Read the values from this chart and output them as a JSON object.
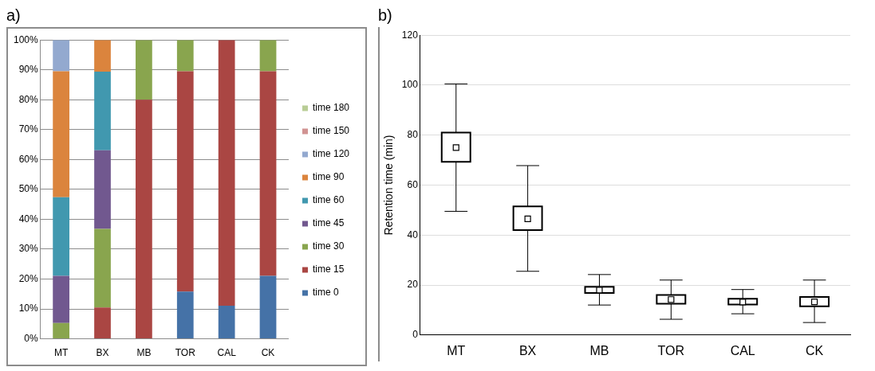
{
  "chart_data": [
    {
      "type": "bar",
      "title": "a)",
      "stacked": true,
      "categories": [
        "MT",
        "BX",
        "MB",
        "TOR",
        "CAL",
        "CK"
      ],
      "ylim": [
        0,
        100
      ],
      "yticks": [
        {
          "value": 0,
          "label": "0%"
        },
        {
          "value": 10,
          "label": "10%"
        },
        {
          "value": 20,
          "label": "20%"
        },
        {
          "value": 30,
          "label": "30%"
        },
        {
          "value": 40,
          "label": "40%"
        },
        {
          "value": 50,
          "label": "50%"
        },
        {
          "value": 60,
          "label": "60%"
        },
        {
          "value": 70,
          "label": "70%"
        },
        {
          "value": 80,
          "label": "80%"
        },
        {
          "value": 90,
          "label": "90%"
        },
        {
          "value": 100,
          "label": "100%"
        }
      ],
      "grid": "y",
      "legend": "right",
      "series": [
        {
          "name": "time 0",
          "color": "#4572a7",
          "values": [
            0,
            0,
            0,
            15.8,
            11.1,
            21.1
          ]
        },
        {
          "name": "time 15",
          "color": "#aa4643",
          "values": [
            0,
            10.5,
            80,
            73.7,
            88.9,
            68.4
          ]
        },
        {
          "name": "time 30",
          "color": "#89a54e",
          "values": [
            5.3,
            26.3,
            20,
            10.5,
            0,
            10.5
          ]
        },
        {
          "name": "time 45",
          "color": "#71588f",
          "values": [
            15.8,
            26.3,
            0,
            0,
            0,
            0
          ]
        },
        {
          "name": "time 60",
          "color": "#4198af",
          "values": [
            26.3,
            26.3,
            0,
            0,
            0,
            0
          ]
        },
        {
          "name": "time 90",
          "color": "#db843d",
          "values": [
            42.1,
            10.6,
            0,
            0,
            0,
            0
          ]
        },
        {
          "name": "time 120",
          "color": "#93a9cf",
          "values": [
            10.5,
            0,
            0,
            0,
            0,
            0
          ]
        },
        {
          "name": "time 150",
          "color": "#d19392",
          "values": [
            0,
            0,
            0,
            0,
            0,
            0
          ]
        },
        {
          "name": "time 180",
          "color": "#b9cd96",
          "values": [
            0,
            0,
            0,
            0,
            0,
            0
          ]
        }
      ]
    },
    {
      "type": "box",
      "title": "b)",
      "ylabel": "Retention time (min)",
      "categories": [
        "MT",
        "BX",
        "MB",
        "TOR",
        "CAL",
        "CK"
      ],
      "ylim": [
        0,
        120
      ],
      "yticks": [
        0,
        20,
        40,
        60,
        80,
        100,
        120
      ],
      "grid": "y",
      "boxes": [
        {
          "low": 49.5,
          "q1": 69.3,
          "median": 75,
          "q3": 81,
          "high": 100.5
        },
        {
          "low": 25.5,
          "q1": 42,
          "median": 46.5,
          "q3": 51.5,
          "high": 67.8
        },
        {
          "low": 12,
          "q1": 16.8,
          "median": 18,
          "q3": 19.3,
          "high": 24.2
        },
        {
          "low": 6.3,
          "q1": 12.5,
          "median": 14.2,
          "q3": 16,
          "high": 22
        },
        {
          "low": 8.5,
          "q1": 12.2,
          "median": 13.2,
          "q3": 14.5,
          "high": 18.2
        },
        {
          "low": 5,
          "q1": 11.5,
          "median": 13.3,
          "q3": 15.2,
          "high": 22
        }
      ]
    }
  ]
}
